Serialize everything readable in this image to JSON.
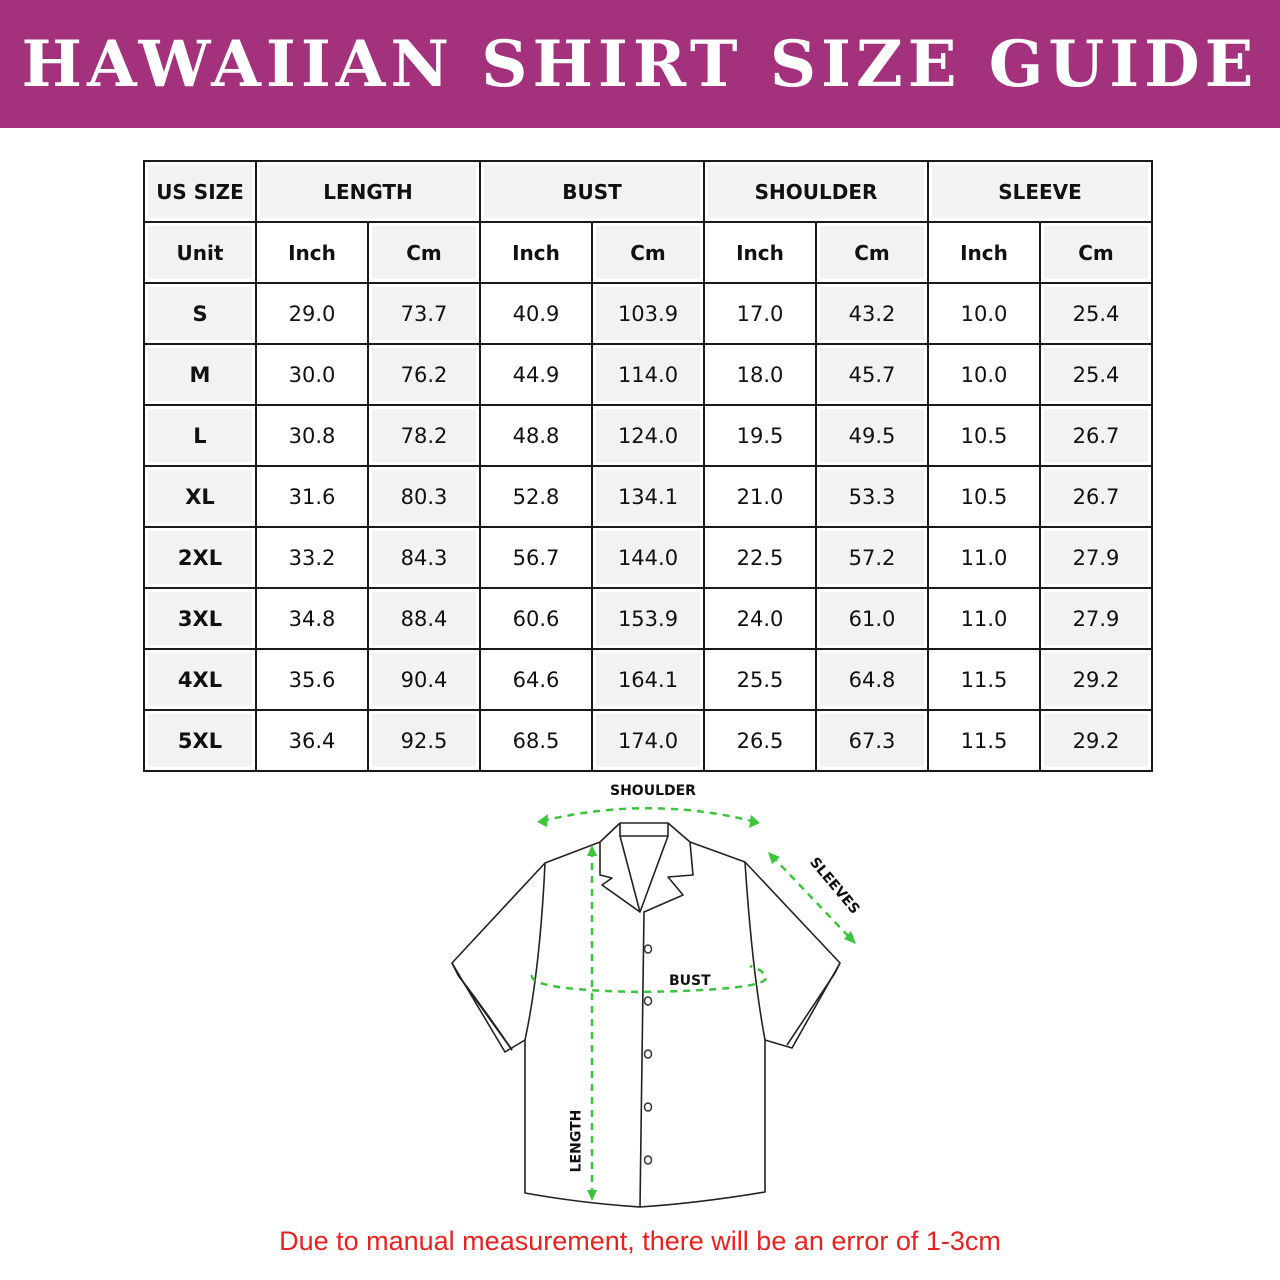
{
  "title": "HAWAIIAN SHIRT SIZE GUIDE",
  "colors": {
    "banner": "#A3317B",
    "arrows": "#3CC43C",
    "note": "#E8221E"
  },
  "table": {
    "size_header": "US SIZE",
    "groups": [
      "LENGTH",
      "BUST",
      "SHOULDER",
      "SLEEVE"
    ],
    "unit_label": "Unit",
    "units": [
      "Inch",
      "Cm",
      "Inch",
      "Cm",
      "Inch",
      "Cm",
      "Inch",
      "Cm"
    ],
    "rows": [
      {
        "size": "S",
        "values": [
          "29.0",
          "73.7",
          "40.9",
          "103.9",
          "17.0",
          "43.2",
          "10.0",
          "25.4"
        ]
      },
      {
        "size": "M",
        "values": [
          "30.0",
          "76.2",
          "44.9",
          "114.0",
          "18.0",
          "45.7",
          "10.0",
          "25.4"
        ]
      },
      {
        "size": "L",
        "values": [
          "30.8",
          "78.2",
          "48.8",
          "124.0",
          "19.5",
          "49.5",
          "10.5",
          "26.7"
        ]
      },
      {
        "size": "XL",
        "values": [
          "31.6",
          "80.3",
          "52.8",
          "134.1",
          "21.0",
          "53.3",
          "10.5",
          "26.7"
        ]
      },
      {
        "size": "2XL",
        "values": [
          "33.2",
          "84.3",
          "56.7",
          "144.0",
          "22.5",
          "57.2",
          "11.0",
          "27.9"
        ]
      },
      {
        "size": "3XL",
        "values": [
          "34.8",
          "88.4",
          "60.6",
          "153.9",
          "24.0",
          "61.0",
          "11.0",
          "27.9"
        ]
      },
      {
        "size": "4XL",
        "values": [
          "35.6",
          "90.4",
          "64.6",
          "164.1",
          "25.5",
          "64.8",
          "11.5",
          "29.2"
        ]
      },
      {
        "size": "5XL",
        "values": [
          "36.4",
          "92.5",
          "68.5",
          "174.0",
          "26.5",
          "67.3",
          "11.5",
          "29.2"
        ]
      }
    ]
  },
  "diagram": {
    "shoulder": "SHOULDER",
    "sleeves": "SLEEVES",
    "bust": "BUST",
    "length": "LENGTH"
  },
  "note": "Due to manual measurement, there will be an error of 1-3cm"
}
